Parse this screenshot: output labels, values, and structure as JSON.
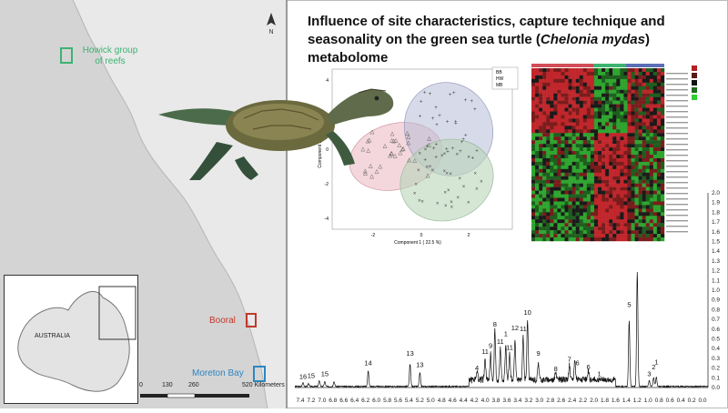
{
  "title": {
    "pre": "Influence of site characteristics, capture technique and seasonality on the green sea turtle (",
    "species": "Chelonia mydas",
    "post": ") metabolome"
  },
  "map": {
    "labels": {
      "howick": "Howick group of reefs",
      "booral": "Booral",
      "moreton": "Moreton Bay",
      "inset_country": "AUSTRALIA",
      "north": "N"
    },
    "scale": {
      "ticks": [
        "0",
        "130",
        "260",
        "520 Kilometers"
      ]
    },
    "colors": {
      "howick": "#3cb371",
      "booral": "#c0392b",
      "moreton": "#2e86c1"
    }
  },
  "pca": {
    "legend": [
      "BB",
      "HW",
      "MB"
    ],
    "xlabel": "Component 1 ( 22.5 %)",
    "ylabel": "Component 2 ( 1",
    "x_ticks": [
      "-2",
      "0",
      "2"
    ],
    "y_ticks": [
      "4",
      "2",
      "0",
      "-2",
      "-4"
    ],
    "ellipse_colors": [
      "#e9b6bf",
      "#b7bcd6",
      "#b9d5b9"
    ]
  },
  "nmr": {
    "y_ticks": [
      "2.0",
      "1.9",
      "1.8",
      "1.7",
      "1.6",
      "1.5",
      "1.4",
      "1.3",
      "1.2",
      "1.1",
      "1.0",
      "0.9",
      "0.8",
      "0.7",
      "0.6",
      "0.5",
      "0.4",
      "0.3",
      "0.2",
      "0.1",
      "0.0"
    ],
    "x_ticks": [
      "7.4",
      "7.2",
      "7.0",
      "6.8",
      "6.6",
      "6.4",
      "6.2",
      "6.0",
      "5.8",
      "5.6",
      "5.4",
      "5.2",
      "5.0",
      "4.8",
      "4.6",
      "4.4",
      "4.2",
      "4.0",
      "3.8",
      "3.6",
      "3.4",
      "3.2",
      "3.0",
      "2.8",
      "2.6",
      "2.4",
      "2.2",
      "2.0",
      "1.8",
      "1.6",
      "1.4",
      "1.2",
      "1.0",
      "0.8",
      "0.6",
      "0.4",
      "0.2",
      "0.0"
    ],
    "peak_labels": [
      "16",
      "15",
      "15",
      "14",
      "13",
      "13",
      "4",
      "11",
      "9",
      "8",
      "11",
      "1",
      "11",
      "12",
      "11",
      "10",
      "9",
      "8",
      "7",
      "6",
      "6",
      "1",
      "5",
      "3",
      "2",
      "1"
    ]
  }
}
